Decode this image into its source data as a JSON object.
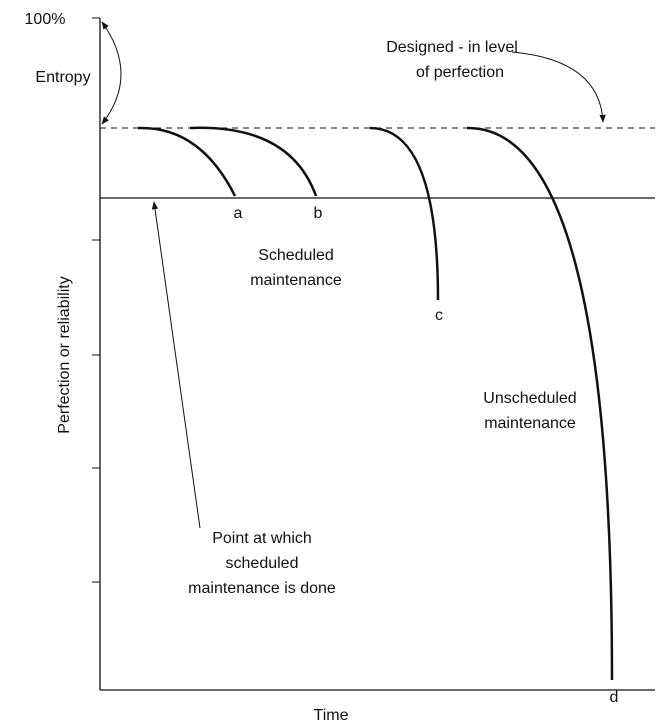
{
  "axes": {
    "y_top_label": "100%",
    "y_label": "Perfection or reliability",
    "x_label": "Time"
  },
  "entropy": "Entropy",
  "designed": [
    "Designed - in level",
    "of perfection"
  ],
  "curves": [
    {
      "label": "a"
    },
    {
      "label": "b"
    },
    {
      "label": "c"
    },
    {
      "label": "d"
    }
  ],
  "scheduled": [
    "Scheduled",
    "maintenance"
  ],
  "unscheduled": [
    "Unscheduled",
    "maintenance"
  ],
  "point_note": [
    "Point at which",
    "scheduled",
    "maintenance is done"
  ]
}
